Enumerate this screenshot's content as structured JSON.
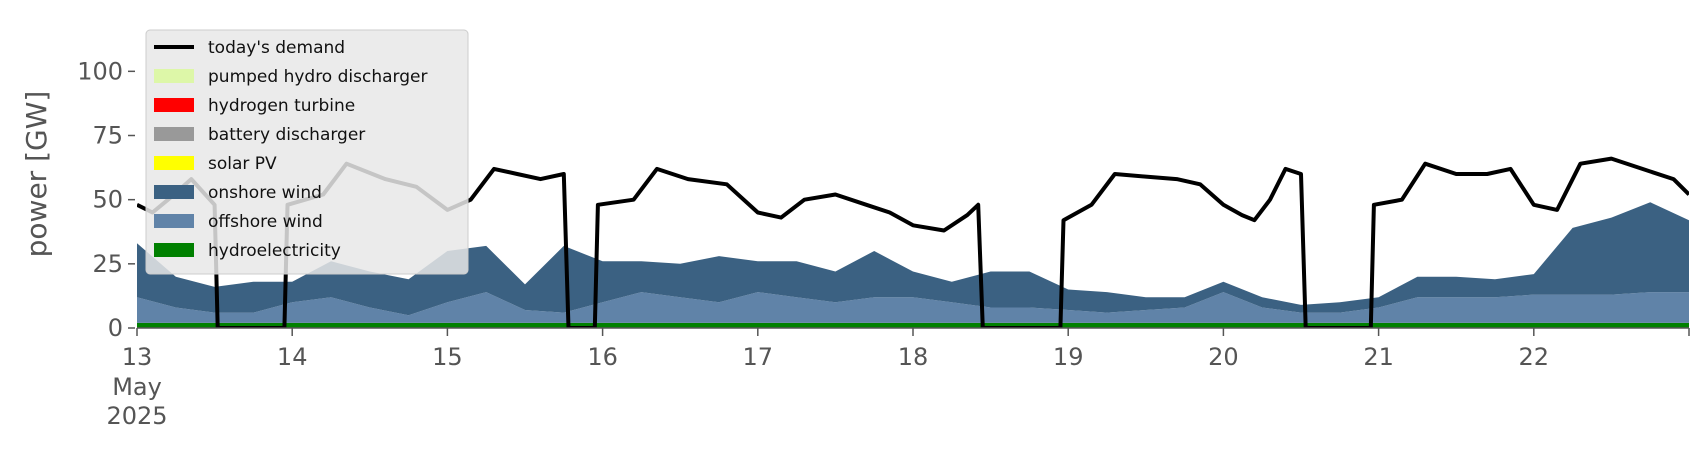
{
  "chart_data": {
    "type": "area",
    "title": "",
    "xlabel": "",
    "ylabel": "power [GW]",
    "ylim": [
      0,
      120
    ],
    "y_ticks": [
      0,
      25,
      50,
      75,
      100
    ],
    "x_range_days": [
      13,
      23
    ],
    "x_ticks": [
      {
        "day": 13,
        "label": "13",
        "sub1": "May",
        "sub2": "2025"
      },
      {
        "day": 14,
        "label": "14"
      },
      {
        "day": 15,
        "label": "15"
      },
      {
        "day": 16,
        "label": "16"
      },
      {
        "day": 17,
        "label": "17"
      },
      {
        "day": 18,
        "label": "18"
      },
      {
        "day": 19,
        "label": "19"
      },
      {
        "day": 20,
        "label": "20"
      },
      {
        "day": 21,
        "label": "21"
      },
      {
        "day": 22,
        "label": "22"
      },
      {
        "day": 23,
        "label": ""
      }
    ],
    "x": [
      13.0,
      13.25,
      13.5,
      13.75,
      14.0,
      14.25,
      14.5,
      14.75,
      15.0,
      15.25,
      15.5,
      15.75,
      16.0,
      16.25,
      16.5,
      16.75,
      17.0,
      17.25,
      17.5,
      17.75,
      18.0,
      18.25,
      18.5,
      18.75,
      19.0,
      19.25,
      19.5,
      19.75,
      20.0,
      20.25,
      20.5,
      20.75,
      21.0,
      21.25,
      21.5,
      21.75,
      22.0,
      22.25,
      22.5,
      22.75,
      23.0
    ],
    "series": [
      {
        "name": "hydroelectricity",
        "color": "#008000",
        "values": [
          2,
          2,
          2,
          2,
          2,
          2,
          2,
          2,
          2,
          2,
          2,
          2,
          2,
          2,
          2,
          2,
          2,
          2,
          2,
          2,
          2,
          2,
          2,
          2,
          2,
          2,
          2,
          2,
          2,
          2,
          2,
          2,
          2,
          2,
          2,
          2,
          2,
          2,
          2,
          2,
          2
        ]
      },
      {
        "name": "offshore wind",
        "color": "#6083a8",
        "values": [
          10,
          6,
          4,
          4,
          8,
          10,
          6,
          3,
          8,
          12,
          5,
          4,
          8,
          12,
          10,
          8,
          12,
          10,
          8,
          10,
          10,
          8,
          6,
          6,
          5,
          4,
          5,
          6,
          12,
          6,
          4,
          4,
          6,
          10,
          10,
          10,
          11,
          11,
          11,
          12,
          12
        ]
      },
      {
        "name": "onshore wind",
        "color": "#3b6182",
        "values": [
          21,
          12,
          10,
          12,
          8,
          14,
          14,
          14,
          20,
          18,
          10,
          26,
          16,
          12,
          13,
          18,
          12,
          14,
          12,
          18,
          10,
          8,
          14,
          14,
          8,
          8,
          5,
          4,
          4,
          4,
          3,
          4,
          4,
          8,
          8,
          7,
          8,
          26,
          30,
          35,
          28
        ]
      },
      {
        "name": "solar PV",
        "color": "#ffff00",
        "values": [
          0,
          0,
          0,
          0,
          0,
          0,
          0,
          0,
          0,
          0,
          0,
          0,
          0,
          0,
          0,
          0,
          0,
          0,
          0,
          0,
          0,
          0,
          0,
          0,
          0,
          0,
          0,
          0,
          0,
          0,
          0,
          0,
          0,
          0,
          0,
          0,
          0,
          0,
          0,
          0,
          0
        ]
      },
      {
        "name": "battery discharger",
        "color": "#999999",
        "values": [
          0,
          0,
          0,
          0,
          0,
          0,
          0,
          0,
          0,
          0,
          0,
          0,
          0,
          0,
          0,
          0,
          0,
          0,
          0,
          0,
          0,
          0,
          0,
          0,
          0,
          0,
          0,
          0,
          0,
          0,
          0,
          0,
          0,
          0,
          0,
          0,
          0,
          0,
          0,
          0,
          0
        ]
      },
      {
        "name": "hydrogen turbine",
        "color": "#ff0000",
        "values": [
          0,
          0,
          0,
          0,
          0,
          0,
          0,
          0,
          0,
          0,
          0,
          0,
          0,
          0,
          0,
          0,
          0,
          0,
          0,
          0,
          0,
          0,
          0,
          0,
          0,
          0,
          0,
          0,
          0,
          0,
          0,
          0,
          0,
          0,
          0,
          0,
          0,
          0,
          0,
          0,
          0
        ]
      },
      {
        "name": "pumped hydro discharger",
        "color": "#ddf7a8",
        "values": [
          0,
          0,
          0,
          0,
          0,
          0,
          0,
          0,
          0,
          0,
          0,
          0,
          0,
          0,
          0,
          0,
          0,
          0,
          0,
          0,
          0,
          0,
          0,
          0,
          0,
          0,
          0,
          0,
          0,
          0,
          0,
          0,
          0,
          0,
          0,
          0,
          0,
          0,
          0,
          0,
          0
        ]
      }
    ],
    "demand": {
      "name": "today's demand",
      "color": "#000000",
      "x": [
        13.0,
        13.1,
        13.2,
        13.35,
        13.5,
        13.52,
        13.95,
        13.97,
        14.2,
        14.35,
        14.6,
        14.8,
        15.0,
        15.15,
        15.3,
        15.45,
        15.6,
        15.75,
        15.78,
        15.95,
        15.97,
        16.2,
        16.35,
        16.55,
        16.8,
        17.0,
        17.15,
        17.3,
        17.5,
        17.7,
        17.85,
        18.0,
        18.2,
        18.35,
        18.42,
        18.45,
        18.95,
        18.97,
        19.15,
        19.3,
        19.5,
        19.7,
        19.85,
        20.0,
        20.12,
        20.2,
        20.3,
        20.4,
        20.5,
        20.53,
        20.95,
        20.97,
        21.15,
        21.3,
        21.5,
        21.7,
        21.85,
        22.0,
        22.15,
        22.3,
        22.5,
        22.7,
        22.9,
        23.0
      ],
      "values": [
        48,
        45,
        50,
        58,
        48,
        0,
        0,
        48,
        52,
        64,
        58,
        55,
        46,
        50,
        62,
        60,
        58,
        60,
        0,
        0,
        48,
        50,
        62,
        58,
        56,
        45,
        43,
        50,
        52,
        48,
        45,
        40,
        38,
        44,
        48,
        0,
        0,
        42,
        48,
        60,
        59,
        58,
        56,
        48,
        44,
        42,
        50,
        62,
        60,
        0,
        0,
        48,
        50,
        64,
        60,
        60,
        62,
        48,
        46,
        64,
        66,
        62,
        58,
        52
      ]
    },
    "legend": {
      "placement": "top-left",
      "entries": [
        {
          "label": "today's demand",
          "color": "#000000",
          "kind": "line"
        },
        {
          "label": "pumped hydro discharger",
          "color": "#ddf7a8",
          "kind": "patch"
        },
        {
          "label": "hydrogen turbine",
          "color": "#ff0000",
          "kind": "patch"
        },
        {
          "label": "battery discharger",
          "color": "#999999",
          "kind": "patch"
        },
        {
          "label": "solar PV",
          "color": "#ffff00",
          "kind": "patch"
        },
        {
          "label": "onshore wind",
          "color": "#3b6182",
          "kind": "patch"
        },
        {
          "label": "offshore wind",
          "color": "#6083a8",
          "kind": "patch"
        },
        {
          "label": "hydroelectricity",
          "color": "#008000",
          "kind": "patch"
        }
      ]
    }
  }
}
